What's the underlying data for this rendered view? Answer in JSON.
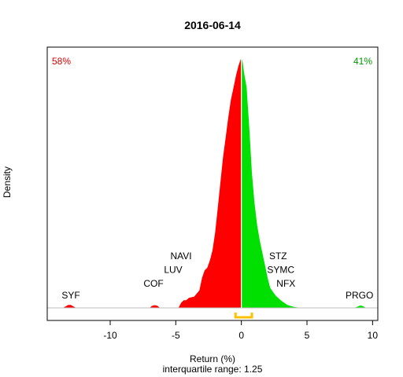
{
  "chart_data": {
    "type": "area",
    "title": "2016-06-14",
    "xlabel": "Return (%)",
    "ylabel": "Density",
    "subtitle": "interquartile range: 1.25",
    "xlim": [
      -14.8,
      10.4
    ],
    "xticks": [
      -10,
      -5,
      0,
      5,
      10
    ],
    "xtick_labels": [
      "-10",
      "-5",
      "0",
      "5",
      "10"
    ],
    "pct_negative": "58%",
    "pct_positive": "41%",
    "colors": {
      "negative": "#ff0000",
      "positive": "#00e000",
      "negative_label": "#e00000",
      "positive_label": "#009900",
      "iqr": "#ffc000"
    },
    "grid": false,
    "density_scale": "relative (peak = 1)",
    "density": {
      "x": [
        -14.8,
        -13.6,
        -13.4,
        -13.2,
        -13.0,
        -12.8,
        -12.6,
        -7.0,
        -6.8,
        -6.6,
        -6.4,
        -6.2,
        -4.8,
        -4.6,
        -4.4,
        -4.2,
        -4.0,
        -3.6,
        -3.2,
        -3.0,
        -2.8,
        -2.6,
        -2.4,
        -2.2,
        -2.0,
        -1.8,
        -1.6,
        -1.4,
        -1.2,
        -1.0,
        -0.8,
        -0.6,
        -0.4,
        -0.2,
        0.0,
        0.1,
        0.2,
        0.4,
        0.6,
        0.8,
        1.0,
        1.2,
        1.4,
        1.6,
        1.8,
        2.0,
        2.2,
        2.6,
        3.0,
        3.5,
        4.0,
        4.5,
        8.6,
        8.9,
        9.1,
        9.3,
        9.5,
        10.4
      ],
      "y": [
        0,
        0,
        0.006,
        0.012,
        0.012,
        0.006,
        0,
        0,
        0.008,
        0.011,
        0.008,
        0,
        0,
        0.02,
        0.03,
        0.031,
        0.04,
        0.045,
        0.07,
        0.12,
        0.15,
        0.16,
        0.19,
        0.23,
        0.3,
        0.4,
        0.5,
        0.6,
        0.68,
        0.76,
        0.83,
        0.88,
        0.93,
        0.97,
        1.0,
        0.98,
        0.94,
        0.88,
        0.72,
        0.54,
        0.42,
        0.33,
        0.27,
        0.22,
        0.17,
        0.12,
        0.08,
        0.05,
        0.03,
        0.012,
        0.004,
        0,
        0,
        0.006,
        0.01,
        0.006,
        0,
        0
      ]
    },
    "iqr": [
      -0.45,
      0.8
    ],
    "annotations": [
      {
        "label": "SYF",
        "x": -13.0,
        "y": 0.038
      },
      {
        "label": "COF",
        "x": -6.7,
        "y": 0.085
      },
      {
        "label": "LUV",
        "x": -5.2,
        "y": 0.14
      },
      {
        "label": "NAVI",
        "x": -4.6,
        "y": 0.195
      },
      {
        "label": "STZ",
        "x": 2.8,
        "y": 0.195
      },
      {
        "label": "SYMC",
        "x": 3.0,
        "y": 0.14
      },
      {
        "label": "NFX",
        "x": 3.4,
        "y": 0.085
      },
      {
        "label": "PRGO",
        "x": 9.0,
        "y": 0.038
      }
    ]
  }
}
